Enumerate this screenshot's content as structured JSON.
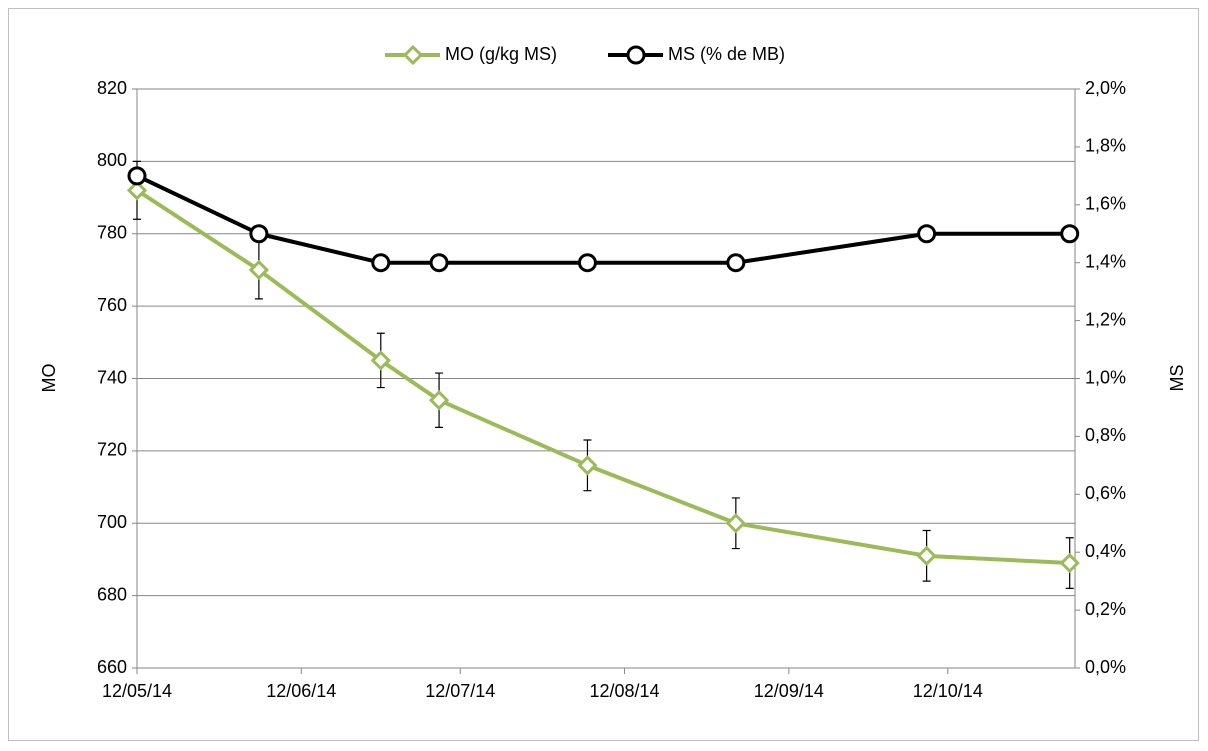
{
  "chart_data": {
    "type": "line",
    "x": [
      "2014-05-12",
      "2014-06-04",
      "2014-06-27",
      "2014-07-08",
      "2014-08-05",
      "2014-09-02",
      "2014-10-08",
      "2014-11-04"
    ],
    "series": [
      {
        "name": "MO (g/kg MS)",
        "color": "#9bbb59",
        "marker": "diamond",
        "values": [
          792,
          770,
          745,
          734,
          716,
          700,
          691,
          689
        ],
        "errors": [
          8,
          8,
          7.5,
          7.5,
          7,
          7,
          7,
          7
        ]
      },
      {
        "name": "MS (% de MB)",
        "color": "#000000",
        "marker": "circle",
        "axis": "y2",
        "values": [
          1.7,
          1.5,
          1.4,
          1.4,
          1.4,
          1.4,
          1.5,
          1.5
        ]
      }
    ],
    "ylabel": "MO",
    "y2label": "MS",
    "xlim": [
      "2014-05-12",
      "2014-11-05"
    ],
    "xticks": [
      {
        "value": "2014-05-12",
        "label": "12/05/14"
      },
      {
        "value": "2014-06-12",
        "label": "12/06/14"
      },
      {
        "value": "2014-07-12",
        "label": "12/07/14"
      },
      {
        "value": "2014-08-12",
        "label": "12/08/14"
      },
      {
        "value": "2014-09-12",
        "label": "12/09/14"
      },
      {
        "value": "2014-10-12",
        "label": "12/10/14"
      }
    ],
    "ylim": [
      660,
      820
    ],
    "yticks": [
      660,
      680,
      700,
      720,
      740,
      760,
      780,
      800,
      820
    ],
    "y2lim": [
      0,
      2
    ],
    "y2ticks": [
      {
        "value": 0,
        "label": "0,0%"
      },
      {
        "value": 0.2,
        "label": "0,2%"
      },
      {
        "value": 0.4,
        "label": "0,4%"
      },
      {
        "value": 0.6,
        "label": "0,6%"
      },
      {
        "value": 0.8,
        "label": "0,8%"
      },
      {
        "value": 1,
        "label": "1,0%"
      },
      {
        "value": 1.2,
        "label": "1,2%"
      },
      {
        "value": 1.4,
        "label": "1,4%"
      },
      {
        "value": 1.6,
        "label": "1,6%"
      },
      {
        "value": 1.8,
        "label": "1,8%"
      },
      {
        "value": 2,
        "label": "2,0%"
      }
    ],
    "grid": true,
    "legend": "top"
  }
}
